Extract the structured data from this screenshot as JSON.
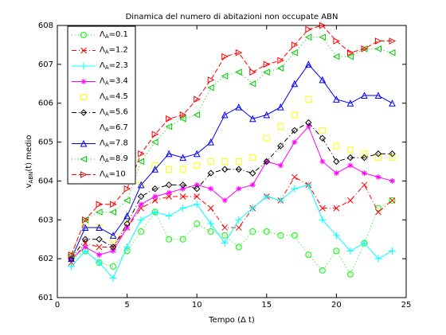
{
  "chart_data": {
    "type": "line",
    "title": "Dinamica del numero di abitazioni non occupate ABN",
    "xlabel": "Tempo (Δ t)",
    "ylabel": "vABN(t) medio",
    "x": [
      1,
      2,
      3,
      4,
      5,
      6,
      7,
      8,
      9,
      10,
      11,
      12,
      13,
      14,
      15,
      16,
      17,
      18,
      19,
      20,
      21,
      22,
      23,
      24
    ],
    "xlim": [
      0,
      25
    ],
    "xticks": [
      0,
      5,
      10,
      15,
      20,
      25
    ],
    "ylim": [
      601,
      608
    ],
    "yticks": [
      601,
      602,
      603,
      604,
      605,
      606,
      607,
      608
    ],
    "legend": "upper left",
    "series": [
      {
        "name": "ΛA=0.1",
        "color": "#00ff00",
        "marker": "circle",
        "linestyle": "dotted",
        "values": [
          602.0,
          602.2,
          601.9,
          601.8,
          602.2,
          602.7,
          603.2,
          602.5,
          602.5,
          602.9,
          602.7,
          602.6,
          602.3,
          602.7,
          602.7,
          602.6,
          602.6,
          602.1,
          601.7,
          602.2,
          601.6,
          602.4,
          603.3,
          603.5
        ]
      },
      {
        "name": "ΛA=1.2",
        "color": "#ff0000",
        "marker": "x",
        "linestyle": "dashdot",
        "values": [
          601.9,
          602.4,
          602.3,
          602.3,
          602.8,
          603.3,
          603.5,
          603.6,
          603.6,
          603.6,
          603.3,
          602.8,
          602.8,
          603.3,
          603.6,
          603.5,
          604.1,
          603.9,
          603.3,
          603.3,
          603.5,
          603.9,
          603.2,
          603.5
        ]
      },
      {
        "name": "ΛA=2.3",
        "color": "#00ffff",
        "marker": "plus",
        "linestyle": "solid",
        "values": [
          601.8,
          602.2,
          601.9,
          601.5,
          602.3,
          603.0,
          603.2,
          603.1,
          603.3,
          603.4,
          602.9,
          602.4,
          603.0,
          603.3,
          603.6,
          603.5,
          603.8,
          603.9,
          603.0,
          602.6,
          602.2,
          602.4,
          602.0,
          602.2
        ]
      },
      {
        "name": "ΛA=3.4",
        "color": "#ff00ff",
        "marker": "star",
        "linestyle": "solid",
        "values": [
          602.0,
          602.3,
          602.1,
          602.2,
          602.8,
          603.4,
          603.6,
          603.7,
          603.8,
          603.9,
          603.8,
          603.5,
          603.8,
          603.9,
          604.5,
          604.4,
          605.0,
          605.4,
          604.5,
          604.2,
          604.4,
          604.2,
          604.1,
          604.0
        ]
      },
      {
        "name": "ΛA=4.5",
        "color": "#ffff00",
        "marker": "square",
        "linestyle": "none",
        "values": [
          602.0,
          602.9,
          602.8,
          602.5,
          603.0,
          603.9,
          604.4,
          604.3,
          604.3,
          604.4,
          604.5,
          604.5,
          604.5,
          604.6,
          605.1,
          605.4,
          605.7,
          606.1,
          605.3,
          604.9,
          604.8,
          604.7,
          604.6,
          604.6
        ]
      },
      {
        "name": "ΛA=5.6",
        "color": "#000000",
        "marker": "diamond",
        "linestyle": "dashdot",
        "values": [
          602.0,
          602.5,
          602.5,
          602.3,
          602.9,
          603.6,
          603.8,
          603.9,
          603.9,
          603.8,
          604.2,
          604.3,
          604.3,
          604.2,
          604.5,
          604.9,
          605.3,
          605.5,
          605.1,
          604.5,
          604.6,
          604.6,
          604.7,
          604.7
        ]
      },
      {
        "name": "ΛA=6.7",
        "color": "#ffffff",
        "marker": "none",
        "linestyle": "none",
        "values": [
          null,
          null,
          null,
          null,
          null,
          null,
          null,
          null,
          null,
          null,
          null,
          null,
          null,
          null,
          null,
          null,
          null,
          null,
          null,
          null,
          null,
          null,
          null,
          null
        ]
      },
      {
        "name": "ΛA=7.8",
        "color": "#0000ff",
        "marker": "triangle-up",
        "linestyle": "solid",
        "values": [
          602.0,
          602.8,
          602.8,
          602.6,
          603.1,
          603.9,
          604.3,
          604.7,
          604.6,
          604.7,
          605.0,
          605.7,
          605.9,
          605.6,
          605.7,
          605.9,
          606.5,
          607.0,
          606.6,
          606.1,
          606.0,
          606.2,
          606.2,
          606.0
        ]
      },
      {
        "name": "ΛA=8.9",
        "color": "#00cc00",
        "marker": "triangle-left",
        "linestyle": "dotted",
        "values": [
          602.1,
          603.0,
          603.2,
          603.2,
          603.5,
          604.5,
          605.0,
          605.4,
          605.6,
          605.7,
          606.4,
          606.7,
          606.8,
          606.5,
          606.8,
          606.9,
          607.3,
          607.7,
          607.7,
          607.2,
          607.2,
          607.4,
          607.4,
          607.3
        ]
      },
      {
        "name": "ΛA=10",
        "color": "#ff0000",
        "marker": "triangle-right",
        "linestyle": "dashed",
        "values": [
          602.1,
          603.0,
          603.4,
          603.4,
          603.8,
          604.7,
          605.2,
          605.6,
          605.7,
          606.1,
          606.6,
          607.2,
          607.3,
          606.8,
          607.0,
          607.1,
          607.5,
          607.9,
          608.0,
          607.6,
          607.3,
          607.4,
          607.6,
          607.6
        ]
      }
    ]
  }
}
